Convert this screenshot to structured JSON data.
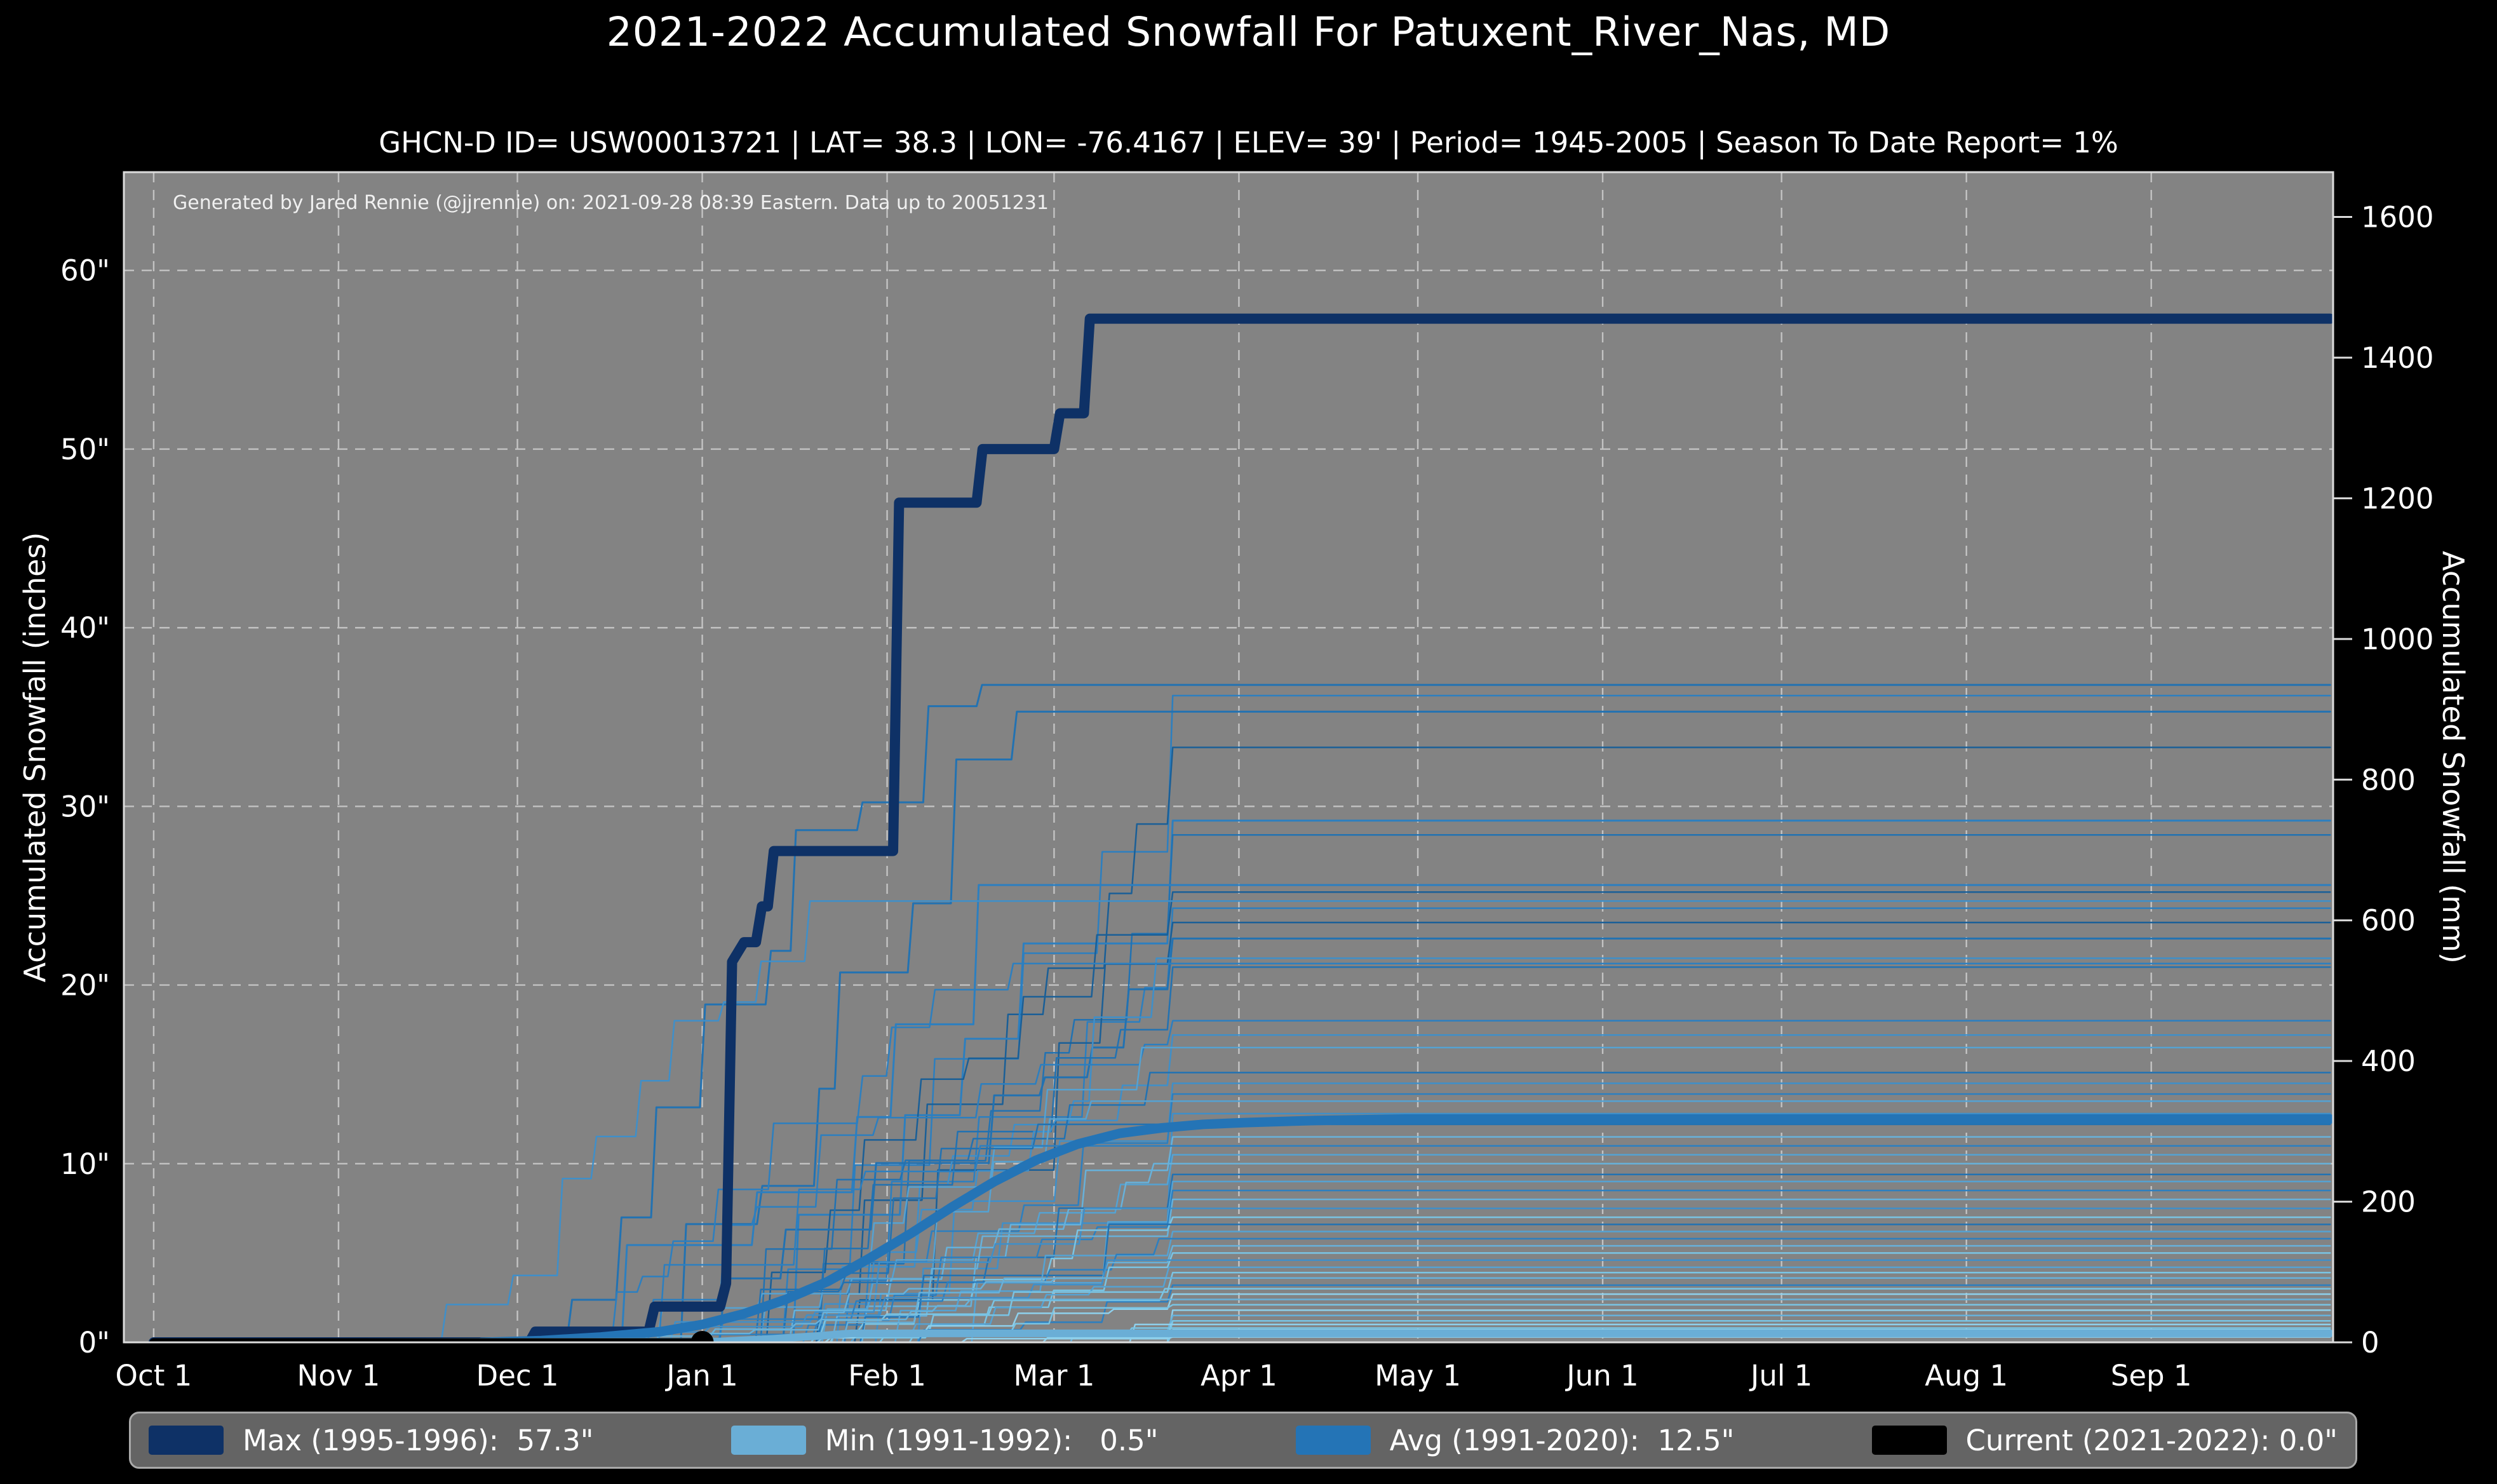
{
  "header": {
    "title": "2021-2022 Accumulated Snowfall For Patuxent_River_Nas, MD",
    "subtitle": "GHCN-D ID= USW00013721 | LAT= 38.3 | LON= -76.4167 | ELEV= 39' | Period= 1945-2005 | Season To Date Report= 1%"
  },
  "annotation": "Generated by Jared Rennie (@jjrennie) on: 2021-09-28 08:39 Eastern. Data up to 20051231",
  "axes_labels": {
    "left": "Accumulated Snowfall (inches)",
    "right": "Accumulated Snowfall (mm)"
  },
  "legend": [
    {
      "label": "Max (1995-1996):  57.3\"",
      "color": "#0e3166"
    },
    {
      "label": "Min (1991-1992):   0.5\"",
      "color": "#6aaed6"
    },
    {
      "label": "Avg (1991-2020):  12.5\"",
      "color": "#2474b6"
    },
    {
      "label": "Current (2021-2022): 0.0\"",
      "color": "#000000"
    }
  ],
  "colors": {
    "figure_bg": "#000000",
    "plot_bg": "#838383",
    "grid": "#cfcfcf",
    "spine": "#dcdcdc",
    "max_line": "#0e3166",
    "min_line": "#6aaed6",
    "avg_line": "#2474b6",
    "current_line": "#000000",
    "season_palette": [
      "#1a5f97",
      "#2272b2",
      "#2c7fc0",
      "#3f8fc9",
      "#55a2d2",
      "#67b1da",
      "#79c4e4",
      "#8ed0ec"
    ]
  },
  "chart_data": {
    "type": "line",
    "title": "2021-2022 Accumulated Snowfall For Patuxent_River_Nas, MD",
    "xlabel": "",
    "ylabel_left": "Accumulated Snowfall (inches)",
    "ylabel_right": "Accumulated Snowfall (mm)",
    "grid": true,
    "legend_position": "bottom",
    "axes": {
      "x_days": [
        -5,
        365.5
      ],
      "y_inches": [
        0,
        65.5
      ],
      "month_ticks": [
        {
          "label": "Oct 1",
          "day": 0
        },
        {
          "label": "Nov 1",
          "day": 31
        },
        {
          "label": "Dec 1",
          "day": 61
        },
        {
          "label": "Jan 1",
          "day": 92
        },
        {
          "label": "Feb 1",
          "day": 123
        },
        {
          "label": "Mar 1",
          "day": 151
        },
        {
          "label": "Apr 1",
          "day": 182
        },
        {
          "label": "May 1",
          "day": 212
        },
        {
          "label": "Jun 1",
          "day": 243
        },
        {
          "label": "Jul 1",
          "day": 273
        },
        {
          "label": "Aug 1",
          "day": 304
        },
        {
          "label": "Sep 1",
          "day": 335
        }
      ],
      "inch_ticks": [
        {
          "v": 0,
          "label": "0\""
        },
        {
          "v": 10,
          "label": "10\""
        },
        {
          "v": 20,
          "label": "20\""
        },
        {
          "v": 30,
          "label": "30\""
        },
        {
          "v": 40,
          "label": "40\""
        },
        {
          "v": 50,
          "label": "50\""
        },
        {
          "v": 60,
          "label": "60\""
        }
      ],
      "mm_ticks": [
        {
          "v": 0,
          "label": "0"
        },
        {
          "v": 200,
          "label": "200"
        },
        {
          "v": 400,
          "label": "400"
        },
        {
          "v": 600,
          "label": "600"
        },
        {
          "v": 800,
          "label": "800"
        },
        {
          "v": 1000,
          "label": "1000"
        },
        {
          "v": 1200,
          "label": "1200"
        },
        {
          "v": 1400,
          "label": "1400"
        },
        {
          "v": 1600,
          "label": "1600"
        }
      ]
    },
    "series": [
      {
        "name": "max",
        "season": "1995-1996",
        "total_in": 57.3,
        "width": 16,
        "points": [
          [
            0,
            0
          ],
          [
            63,
            0
          ],
          [
            64,
            0.6
          ],
          [
            83,
            0.6
          ],
          [
            84,
            2.0
          ],
          [
            95,
            2.0
          ],
          [
            96,
            3.3
          ],
          [
            97,
            21.3
          ],
          [
            99,
            22.4
          ],
          [
            101,
            22.4
          ],
          [
            102,
            24.4
          ],
          [
            103,
            24.4
          ],
          [
            104,
            27.5
          ],
          [
            124,
            27.5
          ],
          [
            125,
            47.0
          ],
          [
            138,
            47.0
          ],
          [
            139,
            50.0
          ],
          [
            151,
            50.0
          ],
          [
            152,
            52.0
          ],
          [
            156,
            52.0
          ],
          [
            157,
            57.3
          ],
          [
            365,
            57.3
          ]
        ]
      },
      {
        "name": "avg",
        "season": "1991-2020",
        "total_in": 12.5,
        "width": 15,
        "points": [
          [
            55,
            0
          ],
          [
            65,
            0.1
          ],
          [
            75,
            0.3
          ],
          [
            85,
            0.6
          ],
          [
            92,
            1.0
          ],
          [
            99,
            1.6
          ],
          [
            106,
            2.4
          ],
          [
            113,
            3.4
          ],
          [
            120,
            4.7
          ],
          [
            127,
            6.1
          ],
          [
            134,
            7.6
          ],
          [
            141,
            9.0
          ],
          [
            148,
            10.2
          ],
          [
            155,
            11.1
          ],
          [
            162,
            11.7
          ],
          [
            169,
            12.0
          ],
          [
            176,
            12.2
          ],
          [
            183,
            12.3
          ],
          [
            195,
            12.42
          ],
          [
            210,
            12.5
          ],
          [
            365,
            12.5
          ]
        ]
      },
      {
        "name": "min",
        "season": "1991-1992",
        "total_in": 0.5,
        "width": 12,
        "points": [
          [
            0,
            0
          ],
          [
            95,
            0.05
          ],
          [
            104,
            0.2
          ],
          [
            111,
            0.35
          ],
          [
            117,
            0.5
          ],
          [
            365,
            0.5
          ]
        ]
      },
      {
        "name": "current",
        "season": "2021-2022",
        "total_in": 0.0,
        "width": 13,
        "points": [
          [
            0,
            0
          ],
          [
            92,
            0
          ]
        ],
        "end_marker_day": 92,
        "end_marker_r": 18
      }
    ],
    "background_seasons_fields": [
      "final_inches",
      "onset_day",
      "shade_index",
      "stroke_width",
      "seed"
    ],
    "background_seasons": [
      [
        36.8,
        64,
        1,
        3,
        11
      ],
      [
        36.2,
        96,
        2,
        2.5,
        12
      ],
      [
        35.3,
        75,
        1,
        3,
        13
      ],
      [
        33.3,
        99,
        0,
        2.5,
        14
      ],
      [
        29.2,
        90,
        2,
        3,
        15
      ],
      [
        28.4,
        101,
        1,
        2.5,
        16
      ],
      [
        25.6,
        66,
        2,
        3,
        17
      ],
      [
        25.2,
        95,
        0,
        2.5,
        18
      ],
      [
        24.7,
        41,
        3,
        2.5,
        19
      ],
      [
        24.3,
        100,
        2,
        2.5,
        20
      ],
      [
        23.5,
        104,
        0,
        2.5,
        21
      ],
      [
        22.6,
        84,
        1,
        3,
        22
      ],
      [
        21.5,
        106,
        3,
        2.5,
        23
      ],
      [
        21.2,
        68,
        2,
        2.5,
        24
      ],
      [
        21.0,
        96,
        1,
        2.5,
        25
      ],
      [
        18.0,
        78,
        2,
        2.5,
        26
      ],
      [
        17.2,
        108,
        3,
        2.5,
        27
      ],
      [
        16.5,
        92,
        4,
        2.5,
        28
      ],
      [
        15.1,
        88,
        1,
        2.5,
        29
      ],
      [
        14.5,
        110,
        3,
        2.5,
        30
      ],
      [
        13.9,
        96,
        2,
        2.5,
        31
      ],
      [
        13.5,
        70,
        4,
        2.5,
        32
      ],
      [
        12.8,
        102,
        3,
        2.5,
        33
      ],
      [
        12.2,
        86,
        1,
        2.5,
        34
      ],
      [
        11.5,
        98,
        5,
        2.5,
        35
      ],
      [
        11.0,
        74,
        2,
        2.5,
        36
      ],
      [
        10.5,
        103,
        4,
        2.5,
        37
      ],
      [
        10.0,
        94,
        5,
        2.5,
        38
      ],
      [
        9.4,
        89,
        1,
        2.5,
        39
      ],
      [
        9.0,
        105,
        4,
        2.5,
        40
      ],
      [
        8.5,
        80,
        2,
        2.5,
        41
      ],
      [
        8.0,
        99,
        5,
        2.5,
        42
      ],
      [
        7.5,
        68,
        3,
        2.5,
        43
      ],
      [
        7.0,
        107,
        6,
        2.5,
        44
      ],
      [
        6.6,
        91,
        1,
        2.5,
        45
      ],
      [
        6.2,
        101,
        4,
        2.5,
        46
      ],
      [
        5.8,
        85,
        2,
        2.5,
        47
      ],
      [
        5.4,
        110,
        5,
        2.5,
        48
      ],
      [
        5.0,
        95,
        6,
        2.5,
        49
      ],
      [
        4.6,
        72,
        3,
        2.5,
        50
      ],
      [
        4.2,
        104,
        4,
        2.5,
        51
      ],
      [
        3.9,
        97,
        6,
        2.5,
        52
      ],
      [
        3.6,
        88,
        5,
        2.5,
        53
      ],
      [
        3.2,
        109,
        2,
        2.5,
        54
      ],
      [
        3.0,
        93,
        6,
        2.5,
        55
      ],
      [
        2.7,
        100,
        7,
        2.5,
        56
      ],
      [
        2.4,
        76,
        5,
        2.5,
        57
      ],
      [
        2.1,
        106,
        6,
        2.5,
        58
      ],
      [
        1.8,
        96,
        7,
        2.5,
        59
      ],
      [
        1.5,
        112,
        5,
        2.5,
        60
      ],
      [
        1.2,
        90,
        6,
        2.5,
        61
      ],
      [
        1.0,
        102,
        7,
        2.5,
        62
      ],
      [
        0.8,
        98,
        6,
        2.5,
        63
      ],
      [
        0.7,
        115,
        7,
        2.5,
        64
      ],
      [
        0.5,
        94,
        6,
        2.5,
        65
      ],
      [
        0.3,
        108,
        7,
        2.5,
        66
      ]
    ]
  }
}
